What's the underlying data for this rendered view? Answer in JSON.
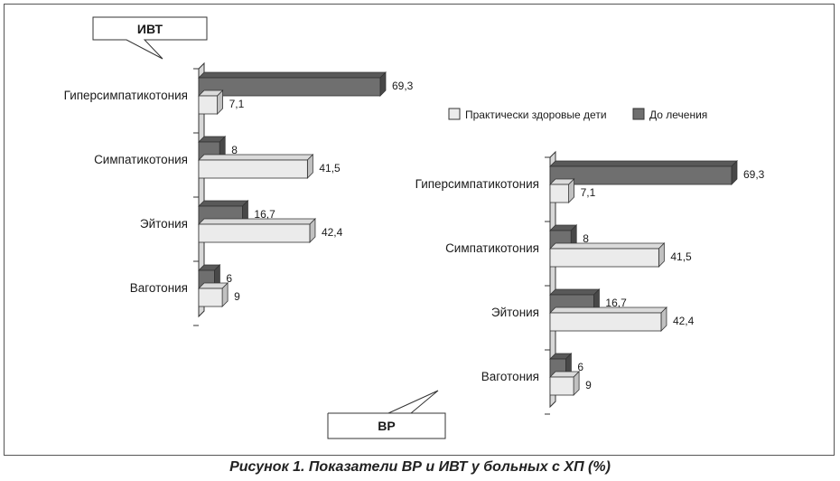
{
  "caption": "Рисунок 1. Показатели ВР и ИВТ у больных с ХП (%)",
  "legend": [
    {
      "label": "Практически здоровые дети",
      "color": "#ebebeb"
    },
    {
      "label": "До лечения",
      "color": "#6f6f6f"
    }
  ],
  "colors": {
    "light_bar": "#ebebeb",
    "dark_bar": "#6f6f6f",
    "axis_wall": "#d8d8d8"
  },
  "chart_data": [
    {
      "type": "bar",
      "orientation": "horizontal",
      "callout": "ИВТ",
      "categories": [
        "Гиперсимпатикотония",
        "Симпатикотония",
        "Эйтония",
        "Ваготония"
      ],
      "series": [
        {
          "name": "До лечения",
          "values": [
            69.3,
            8,
            16.7,
            6
          ],
          "labels": [
            "69,3",
            "8",
            "16,7",
            "6"
          ]
        },
        {
          "name": "Практически здоровые дети",
          "values": [
            7.1,
            41.5,
            42.4,
            9
          ],
          "labels": [
            "7,1",
            "41,5",
            "42,4",
            "9"
          ]
        }
      ],
      "xlim": [
        0,
        70
      ]
    },
    {
      "type": "bar",
      "orientation": "horizontal",
      "callout": "ВР",
      "categories": [
        "Гиперсимпатикотония",
        "Симпатикотония",
        "Эйтония",
        "Ваготония"
      ],
      "series": [
        {
          "name": "До лечения",
          "values": [
            69.3,
            8,
            16.7,
            6
          ],
          "labels": [
            "69,3",
            "8",
            "16,7",
            "6"
          ]
        },
        {
          "name": "Практически здоровые дети",
          "values": [
            7.1,
            41.5,
            42.4,
            9
          ],
          "labels": [
            "7,1",
            "41,5",
            "42,4",
            "9"
          ]
        }
      ],
      "xlim": [
        0,
        70
      ]
    }
  ]
}
